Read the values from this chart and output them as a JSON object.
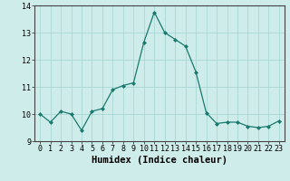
{
  "x": [
    0,
    1,
    2,
    3,
    4,
    5,
    6,
    7,
    8,
    9,
    10,
    11,
    12,
    13,
    14,
    15,
    16,
    17,
    18,
    19,
    20,
    21,
    22,
    23
  ],
  "y": [
    10.0,
    9.7,
    10.1,
    10.0,
    9.4,
    10.1,
    10.2,
    10.9,
    11.05,
    11.15,
    12.65,
    13.75,
    13.0,
    12.75,
    12.5,
    11.55,
    10.05,
    9.65,
    9.7,
    9.7,
    9.55,
    9.5,
    9.55,
    9.75
  ],
  "line_color": "#1a7a6e",
  "marker": "D",
  "marker_size": 2,
  "bg_color": "#ceecea",
  "grid_color": "#a8d8d4",
  "xlabel": "Humidex (Indice chaleur)",
  "ylim": [
    9.0,
    14.0
  ],
  "xlim": [
    -0.5,
    23.5
  ],
  "yticks": [
    9,
    10,
    11,
    12,
    13,
    14
  ],
  "xticks": [
    0,
    1,
    2,
    3,
    4,
    5,
    6,
    7,
    8,
    9,
    10,
    11,
    12,
    13,
    14,
    15,
    16,
    17,
    18,
    19,
    20,
    21,
    22,
    23
  ],
  "tick_fontsize": 6,
  "label_fontsize": 7.5
}
